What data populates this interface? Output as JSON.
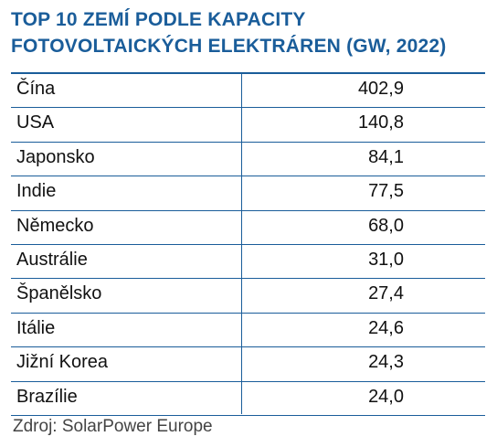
{
  "title_line1": "TOP 10 ZEMÍ PODLE KAPACITY",
  "title_line2": "FOTOVOLTAICKÝCH ELEKTRÁREN (GW, 2022)",
  "source": "Zdroj: SolarPower Europe",
  "colors": {
    "accent": "#1a5d9a",
    "text": "#111111"
  },
  "chart_data": {
    "type": "table",
    "title": "TOP 10 ZEMÍ PODLE KAPACITY FOTOVOLTAICKÝCH ELEKTRÁREN (GW, 2022)",
    "rows": [
      {
        "country": "Čína",
        "value": "402,9"
      },
      {
        "country": "USA",
        "value": "140,8"
      },
      {
        "country": "Japonsko",
        "value": "84,1"
      },
      {
        "country": "Indie",
        "value": "77,5"
      },
      {
        "country": "Německo",
        "value": "68,0"
      },
      {
        "country": "Austrálie",
        "value": "31,0"
      },
      {
        "country": "Španělsko",
        "value": "27,4"
      },
      {
        "country": "Itálie",
        "value": "24,6"
      },
      {
        "country": "Jižní Korea",
        "value": "24,3"
      },
      {
        "country": "Brazílie",
        "value": "24,0"
      }
    ]
  }
}
